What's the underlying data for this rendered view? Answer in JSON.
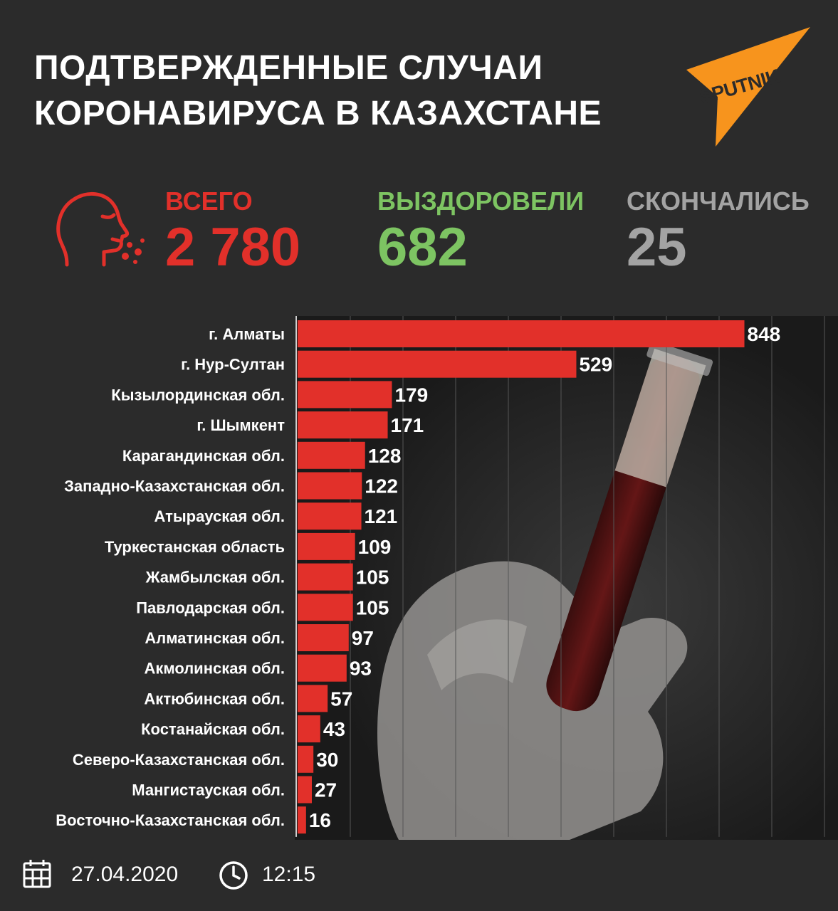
{
  "header": {
    "title_line1": "ПОДТВЕРЖДЕННЫЕ СЛУЧАИ",
    "title_line2": "КОРОНАВИРУСА В КАЗАХСТАНЕ",
    "brand": "SPUTNIK",
    "brand_color": "#f7941d"
  },
  "stats": {
    "total_label": "ВСЕГО",
    "total_value": "2 780",
    "recovered_label": "ВЫЗДОРОВЕЛИ",
    "recovered_value": "682",
    "deaths_label": "СКОНЧАЛИСЬ",
    "deaths_value": "25",
    "colors": {
      "total": "#e2302a",
      "recovered": "#7dc462",
      "deaths": "#a3a3a3"
    },
    "icon": "sneezing-head-icon"
  },
  "chart_data": {
    "type": "bar",
    "orientation": "horizontal",
    "categories": [
      "г. Алматы",
      "г. Нур-Султан",
      "Кызылординская обл.",
      "г. Шымкент",
      "Карагандинская обл.",
      "Западно-Казахстанская обл.",
      "Атырауская обл.",
      "Туркестанская область",
      "Жамбылская обл.",
      "Павлодарская обл.",
      "Алматинская обл.",
      "Акмолинская обл.",
      "Актюбинская обл.",
      "Костанайская обл.",
      "Северо-Казахстанская обл.",
      "Мангистауская обл.",
      "Восточно-Казахстанская обл."
    ],
    "values": [
      848,
      529,
      179,
      171,
      128,
      122,
      121,
      109,
      105,
      105,
      97,
      93,
      57,
      43,
      30,
      27,
      16
    ],
    "xlim": [
      0,
      1000
    ],
    "bar_color": "#e2302a",
    "grid": true,
    "data_labels": true
  },
  "footer": {
    "date": "27.04.2020",
    "time": "12:15",
    "date_icon": "calendar-icon",
    "time_icon": "clock-icon"
  }
}
